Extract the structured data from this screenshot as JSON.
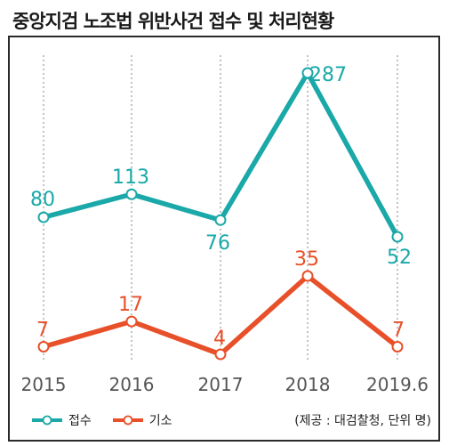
{
  "chart_data": {
    "type": "line",
    "title": "중앙지검 노조법 위반사건 접수 및 처리현황",
    "categories": [
      "2015",
      "2016",
      "2017",
      "2018",
      "2019.6"
    ],
    "series": [
      {
        "name": "접수",
        "values": [
          80,
          113,
          76,
          287,
          52
        ],
        "color": "#1aa8a8"
      },
      {
        "name": "기소",
        "values": [
          7,
          17,
          4,
          35,
          7
        ],
        "color": "#e8502a"
      }
    ],
    "source_note": "(제공 : 대검찰청, 단위 명)",
    "grid": "vertical-dotted",
    "legend_position": "bottom-left"
  }
}
